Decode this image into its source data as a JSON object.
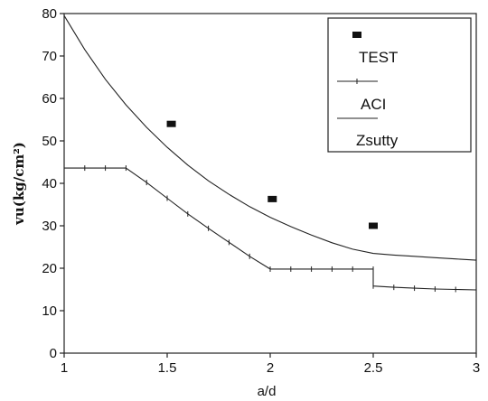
{
  "chart_data": {
    "type": "line",
    "xlabel": "a/d",
    "ylabel": "vu(kg/cm²)",
    "xlim": [
      1,
      3
    ],
    "ylim": [
      0,
      80
    ],
    "xticks": [
      "1",
      "1.5",
      "2",
      "2.5",
      "3"
    ],
    "yticks": [
      "0",
      "10",
      "20",
      "30",
      "40",
      "50",
      "60",
      "70",
      "80"
    ],
    "legend_position": "top-right",
    "series": [
      {
        "name": "TEST",
        "style": "square-markers",
        "points": [
          [
            1.52,
            54
          ],
          [
            2.01,
            36.3
          ],
          [
            2.5,
            30
          ]
        ]
      },
      {
        "name": "ACI",
        "style": "line-with-tick-markers",
        "points": [
          [
            1.0,
            43.6
          ],
          [
            1.1,
            43.6
          ],
          [
            1.2,
            43.6
          ],
          [
            1.3,
            43.6
          ],
          [
            1.4,
            40.2
          ],
          [
            1.5,
            36.5
          ],
          [
            1.6,
            32.8
          ],
          [
            1.7,
            29.4
          ],
          [
            1.8,
            26.1
          ],
          [
            1.9,
            22.8
          ],
          [
            2.0,
            19.8
          ],
          [
            2.1,
            19.8
          ],
          [
            2.2,
            19.8
          ],
          [
            2.3,
            19.8
          ],
          [
            2.4,
            19.8
          ],
          [
            2.5,
            19.8
          ],
          [
            2.5,
            15.8
          ],
          [
            2.6,
            15.5
          ],
          [
            2.7,
            15.3
          ],
          [
            2.8,
            15.1
          ],
          [
            2.9,
            15.0
          ],
          [
            3.0,
            14.9
          ]
        ]
      },
      {
        "name": "Zsutty",
        "style": "line",
        "points": [
          [
            1.0,
            79.5
          ],
          [
            1.1,
            71.5
          ],
          [
            1.2,
            64.5
          ],
          [
            1.3,
            58.5
          ],
          [
            1.4,
            53.2
          ],
          [
            1.5,
            48.5
          ],
          [
            1.6,
            44.3
          ],
          [
            1.7,
            40.6
          ],
          [
            1.8,
            37.4
          ],
          [
            1.9,
            34.5
          ],
          [
            2.0,
            32.0
          ],
          [
            2.1,
            29.8
          ],
          [
            2.2,
            27.8
          ],
          [
            2.3,
            26.0
          ],
          [
            2.4,
            24.5
          ],
          [
            2.5,
            23.5
          ],
          [
            2.6,
            23.1
          ],
          [
            2.7,
            22.8
          ],
          [
            2.8,
            22.5
          ],
          [
            2.9,
            22.2
          ],
          [
            3.0,
            21.9
          ]
        ]
      }
    ]
  }
}
